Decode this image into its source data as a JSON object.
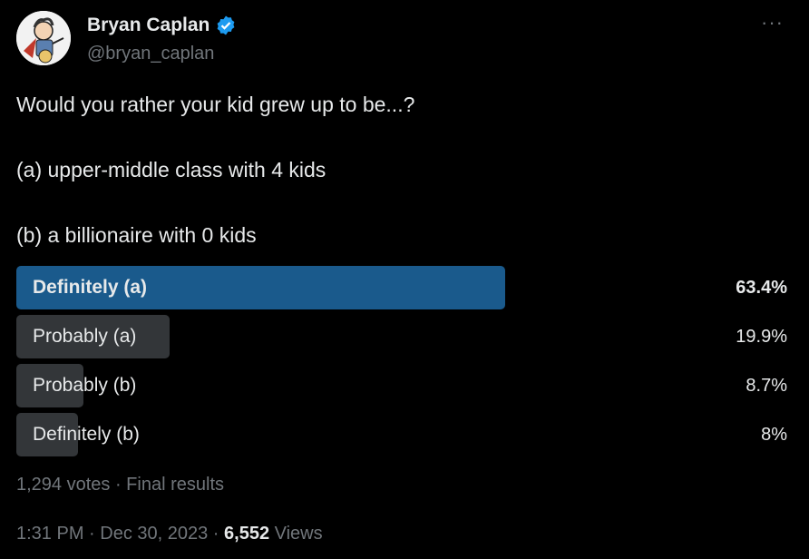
{
  "author": {
    "name": "Bryan Caplan",
    "handle": "@bryan_caplan",
    "verified_color": "#1d9bf0"
  },
  "more_label": "···",
  "tweet": {
    "line1": "Would you rather your kid grew up to be...?",
    "line2": "(a) upper-middle class with 4 kids",
    "line3": "(b) a billionaire with 0 kids"
  },
  "poll": {
    "options": [
      {
        "label": "Definitely (a)",
        "percent_text": "63.4%",
        "percent": 63.4,
        "winner": true
      },
      {
        "label": "Probably (a)",
        "percent_text": "19.9%",
        "percent": 19.9,
        "winner": false
      },
      {
        "label": "Probably (b)",
        "percent_text": "8.7%",
        "percent": 8.7,
        "winner": false
      },
      {
        "label": "Definitely (b)",
        "percent_text": "8%",
        "percent": 8,
        "winner": false
      }
    ],
    "summary": "1,294 votes · Final results",
    "winner_color": "#1a5a8c",
    "bar_color": "#333639"
  },
  "meta": {
    "time_date": "1:31 PM · Dec 30, 2023 · ",
    "views_count": "6,552",
    "views_label": " Views"
  }
}
